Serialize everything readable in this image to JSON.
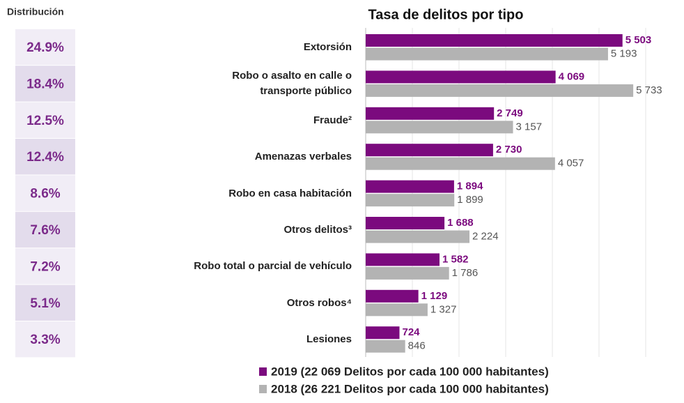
{
  "chart_data": {
    "type": "bar",
    "orientation": "horizontal",
    "title": "Tasa de delitos por tipo",
    "categories": [
      "Extorsión",
      "Robo o asalto en calle o transporte público",
      "Fraude²",
      "Amenazas verbales",
      "Robo en casa habitación",
      "Otros delitos³",
      "Robo total o parcial de vehículo",
      "Otros robos⁴",
      "Lesiones"
    ],
    "series": [
      {
        "name": "2019 (22 069 Delitos por cada 100 000 habitantes)",
        "color": "#7b0a7e",
        "values": [
          5503,
          4069,
          2749,
          2730,
          1894,
          1688,
          1582,
          1129,
          724
        ],
        "value_labels": [
          "5 503",
          "4 069",
          "2 749",
          "2 730",
          "1 894",
          "1 688",
          "1 582",
          "1 129",
          "724"
        ]
      },
      {
        "name": "2018 (26 221 Delitos por cada 100 000 habitantes)",
        "color": "#b3b3b3",
        "values": [
          5193,
          5733,
          3157,
          4057,
          1899,
          2224,
          1786,
          1327,
          846
        ],
        "value_labels": [
          "5 193",
          "5 733",
          "3 157",
          "4 057",
          "1 899",
          "2 224",
          "1 786",
          "1 327",
          "846"
        ]
      }
    ],
    "xlim": [
      0,
      6000
    ],
    "xticks": [
      0,
      1000,
      2000,
      3000,
      4000,
      5000,
      6000
    ],
    "grid": true
  },
  "distribution": {
    "title": "Distribución",
    "values": [
      24.9,
      18.4,
      12.5,
      12.4,
      8.6,
      7.6,
      7.2,
      5.1,
      3.3
    ],
    "value_labels": [
      "24.9%",
      "18.4%",
      "12.5%",
      "12.4%",
      "8.6%",
      "7.6%",
      "7.2%",
      "5.1%",
      "3.3%"
    ]
  }
}
